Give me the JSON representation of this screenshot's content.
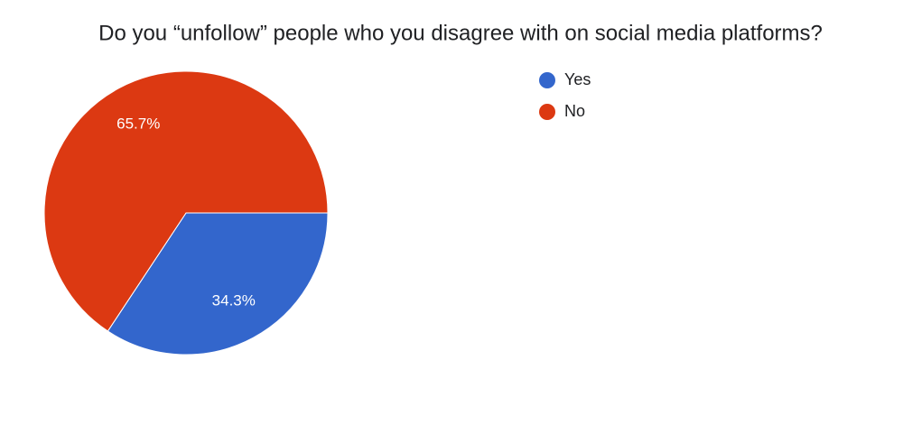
{
  "chart_data": {
    "type": "pie",
    "title": "Do you “unfollow” people who you disagree with on social media platforms?",
    "categories": [
      "Yes",
      "No"
    ],
    "values": [
      34.3,
      65.7
    ],
    "value_labels": [
      "34.3%",
      "65.7%"
    ],
    "colors": [
      "#3366cc",
      "#dc3912"
    ],
    "legend": "right"
  }
}
